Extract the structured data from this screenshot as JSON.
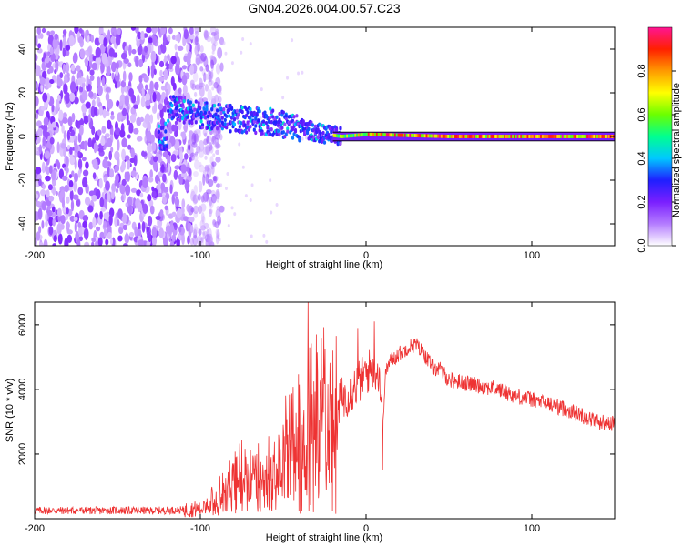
{
  "chart_data": [
    {
      "type": "heatmap",
      "title": "GN04.2026.004.00.57.C23",
      "xlabel": "Height of straight line (km)",
      "ylabel": "Frequency (Hz)",
      "xlim": [
        -200,
        150
      ],
      "ylim": [
        -50,
        50
      ],
      "xticks": [
        -200,
        -100,
        0,
        100
      ],
      "yticks": [
        40,
        20,
        0,
        -20,
        -40
      ],
      "xtick_labels": [
        "-200",
        "-100",
        "0",
        "100"
      ],
      "ytick_labels": [
        "40",
        "20",
        "0",
        "-20",
        "-40"
      ],
      "colorbar": {
        "label": "Normalized spectral amplitude",
        "range": [
          0,
          1
        ],
        "ticks": [
          0.0,
          0.2,
          0.4,
          0.6,
          0.8
        ],
        "tick_labels": [
          "0.0",
          "0.2",
          "0.4",
          "0.6",
          "0.8"
        ],
        "colors": [
          "#ffffff",
          "#b47cff",
          "#7a1fff",
          "#1f1fff",
          "#00c8ff",
          "#00ff90",
          "#6bff00",
          "#ffff00",
          "#ff9a00",
          "#ff2000",
          "#ff1493"
        ]
      },
      "description_points": {
        "noise_region_x": [
          -200,
          -95
        ],
        "signal_track": [
          {
            "x": -120,
            "y": 13
          },
          {
            "x": -100,
            "y": 10
          },
          {
            "x": -80,
            "y": 8
          },
          {
            "x": -60,
            "y": 7
          },
          {
            "x": -40,
            "y": 4
          },
          {
            "x": -25,
            "y": 1
          },
          {
            "x": -15,
            "y": 0
          },
          {
            "x": 0,
            "y": 1
          },
          {
            "x": 50,
            "y": 0
          },
          {
            "x": 150,
            "y": 0
          }
        ]
      }
    },
    {
      "type": "line",
      "xlabel": "Height of straight line (km)",
      "ylabel": "SNR (10 * v/v)",
      "xlim": [
        -200,
        150
      ],
      "ylim": [
        0,
        6700
      ],
      "xticks": [
        -200,
        -100,
        0,
        100
      ],
      "yticks": [
        6000,
        4000,
        2000
      ],
      "xtick_labels": [
        "-200",
        "-100",
        "0",
        "100"
      ],
      "ytick_labels": [
        "6000",
        "4000",
        "2000"
      ],
      "color": "#ee3333",
      "series": [
        {
          "name": "SNR",
          "x": [
            -200,
            -190,
            -180,
            -170,
            -160,
            -150,
            -140,
            -130,
            -120,
            -110,
            -100,
            -95,
            -90,
            -85,
            -80,
            -75,
            -70,
            -65,
            -60,
            -55,
            -50,
            -45,
            -40,
            -35,
            -30,
            -25,
            -20,
            -17,
            -15,
            -10,
            -5,
            0,
            5,
            8,
            10,
            12,
            15,
            20,
            25,
            30,
            35,
            40,
            45,
            50,
            60,
            70,
            80,
            90,
            100,
            110,
            120,
            130,
            140,
            150
          ],
          "y": [
            250,
            260,
            250,
            255,
            250,
            260,
            255,
            250,
            260,
            270,
            300,
            450,
            650,
            900,
            1100,
            1300,
            1200,
            1400,
            1300,
            1700,
            1900,
            2300,
            2600,
            3000,
            3300,
            3100,
            3300,
            3500,
            3700,
            3900,
            4200,
            4500,
            4700,
            4500,
            3000,
            4600,
            4900,
            5100,
            5300,
            5400,
            5100,
            4700,
            4600,
            4300,
            4200,
            4100,
            4000,
            3800,
            3700,
            3550,
            3400,
            3200,
            3000,
            2950
          ]
        }
      ],
      "spikes": [
        {
          "x": -35,
          "y": 6700
        },
        {
          "x": -34,
          "y": 5300
        },
        {
          "x": -30,
          "y": 5700
        },
        {
          "x": -27,
          "y": 5600
        },
        {
          "x": -20,
          "y": 5200
        },
        {
          "x": -5,
          "y": 5900
        },
        {
          "x": 5,
          "y": 6100
        },
        {
          "x": 10,
          "y": 1500
        }
      ]
    }
  ]
}
